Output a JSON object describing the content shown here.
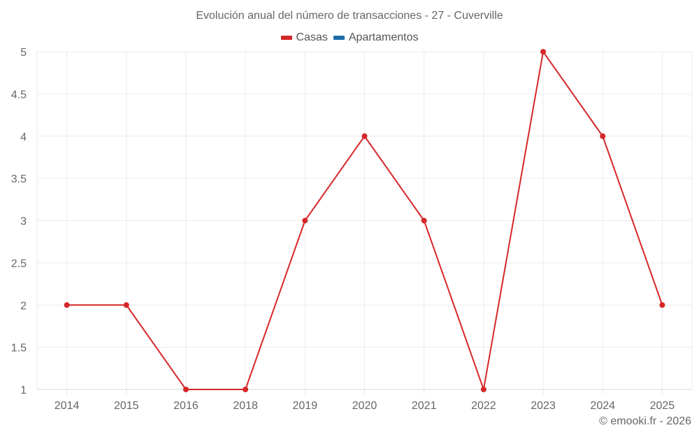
{
  "chart_data": {
    "type": "line",
    "title": "Evolución anual del número de transacciones - 27 - Cuverville",
    "categories": [
      "2014",
      "2015",
      "2016",
      "2018",
      "2019",
      "2020",
      "2021",
      "2022",
      "2023",
      "2024",
      "2025"
    ],
    "series": [
      {
        "name": "Casas",
        "color": "#d62728",
        "values": [
          2,
          2,
          1,
          1,
          3,
          4,
          3,
          1,
          5,
          4,
          2
        ]
      },
      {
        "name": "Apartamentos",
        "color": "#1f6fa8",
        "values": []
      }
    ],
    "xlabel": "",
    "ylabel": "",
    "ylim": [
      1,
      5
    ],
    "yticks": [
      "1",
      "1.5",
      "2",
      "2.5",
      "3",
      "3.5",
      "4",
      "4.5",
      "5"
    ],
    "grid": true,
    "legend_position": "top"
  },
  "title": "Evolución anual del número de transacciones - 27 - Cuverville",
  "legend": [
    {
      "label": "Casas",
      "color": "#d62728"
    },
    {
      "label": "Apartamentos",
      "color": "#1f6fa8"
    }
  ],
  "credit": "© emooki.fr - 2026"
}
